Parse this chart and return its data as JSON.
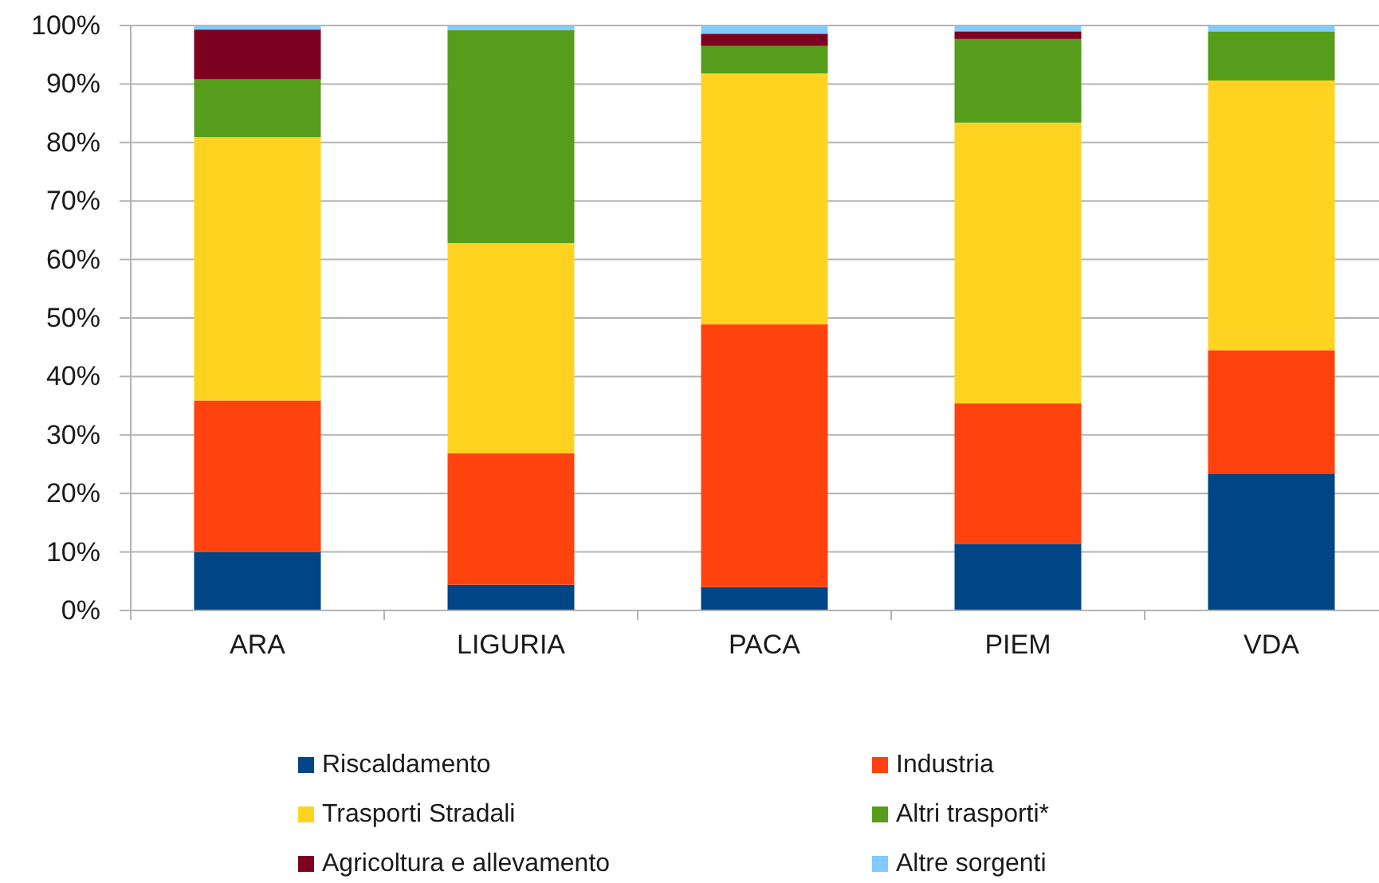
{
  "chart_data": {
    "type": "bar",
    "stacked": true,
    "categories": [
      "ARA",
      "LIGURIA",
      "PACA",
      "PIEM",
      "VDA"
    ],
    "series": [
      {
        "name": "Riscaldamento",
        "color": "#004586",
        "values": [
          10,
          4.4,
          4,
          11.4,
          23.4
        ]
      },
      {
        "name": "Industria",
        "color": "#ff420e",
        "values": [
          25.9,
          22.5,
          44.9,
          24,
          21.1
        ]
      },
      {
        "name": "Trasporti Stradali",
        "color": "#ffd320",
        "values": [
          45,
          35.9,
          42.9,
          48,
          46.1
        ]
      },
      {
        "name": "Altri trasporti*",
        "color": "#579d1c",
        "values": [
          9.9,
          36.4,
          4.7,
          14.3,
          8.4
        ]
      },
      {
        "name": "Agricoltura e allevamento",
        "color": "#7e0021",
        "values": [
          8.5,
          null,
          2.1,
          1.3,
          null
        ]
      },
      {
        "name": "Altre sorgenti",
        "color": "#83caff",
        "values": [
          0.7,
          0.8,
          1.4,
          1,
          1
        ]
      }
    ],
    "ylim": [
      0,
      100
    ],
    "yticks": [
      {
        "value": 0,
        "label": "0%"
      },
      {
        "value": 10,
        "label": "10%"
      },
      {
        "value": 20,
        "label": "20%"
      },
      {
        "value": 30,
        "label": "30%"
      },
      {
        "value": 40,
        "label": "40%"
      },
      {
        "value": 50,
        "label": "50%"
      },
      {
        "value": 60,
        "label": "60%"
      },
      {
        "value": 70,
        "label": "70%"
      },
      {
        "value": 80,
        "label": "80%"
      },
      {
        "value": 90,
        "label": "90%"
      },
      {
        "value": 100,
        "label": "100%"
      }
    ],
    "grid": "y",
    "legend": "bottom"
  }
}
